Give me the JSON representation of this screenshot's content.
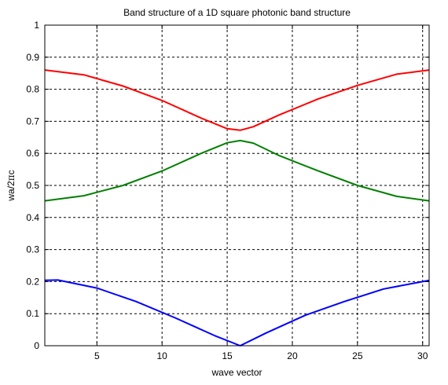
{
  "chart_data": {
    "type": "line",
    "title": "Band structure of a 1D square photonic band structure",
    "xlabel": "wave vector",
    "ylabel": {
      "prefix": "wa/2",
      "pi": "π",
      "suffix": "c"
    },
    "xlim": [
      1,
      30.5
    ],
    "ylim": [
      0,
      1
    ],
    "xticks": [
      5,
      10,
      15,
      20,
      25,
      30
    ],
    "yticks": [
      0,
      0.1,
      0.2,
      0.3,
      0.4,
      0.5,
      0.6,
      0.7,
      0.8,
      0.9,
      1
    ],
    "ytick_labels": [
      "0",
      "0.1",
      "0.2",
      "0.3",
      "0.4",
      "0.5",
      "0.6",
      "0.7",
      "0.8",
      "0.9",
      "1"
    ],
    "grid": true,
    "series": [
      {
        "color": "#ff0000",
        "x": [
          1,
          4,
          7,
          10,
          13,
          15,
          16,
          17,
          19,
          22,
          25,
          28,
          30.5
        ],
        "y": [
          0.86,
          0.845,
          0.81,
          0.765,
          0.71,
          0.677,
          0.672,
          0.683,
          0.72,
          0.77,
          0.812,
          0.847,
          0.86
        ]
      },
      {
        "color": "#008000",
        "x": [
          1,
          4,
          7,
          10,
          13,
          15,
          16,
          17,
          19,
          22,
          25,
          28,
          30.5
        ],
        "y": [
          0.452,
          0.468,
          0.5,
          0.545,
          0.6,
          0.633,
          0.64,
          0.632,
          0.593,
          0.545,
          0.5,
          0.466,
          0.452
        ]
      },
      {
        "color": "#0000ff",
        "x": [
          1,
          2,
          5,
          8,
          11,
          14,
          16,
          18,
          21,
          24,
          27,
          30,
          30.5
        ],
        "y": [
          0.204,
          0.205,
          0.18,
          0.138,
          0.087,
          0.032,
          0.0,
          0.04,
          0.095,
          0.138,
          0.177,
          0.2,
          0.204
        ]
      }
    ]
  }
}
